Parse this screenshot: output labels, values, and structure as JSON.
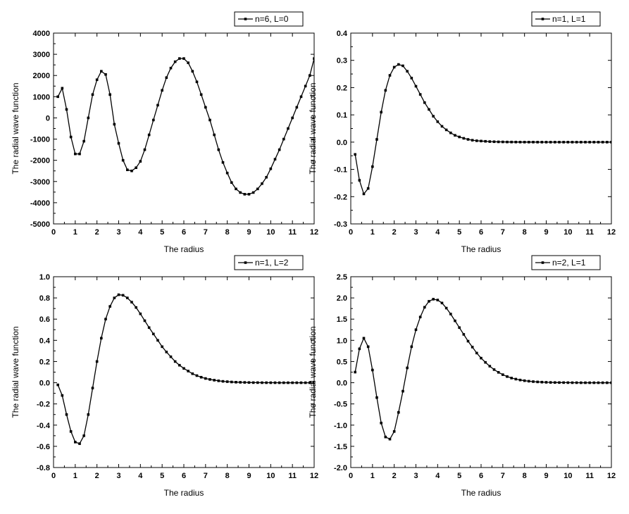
{
  "chart_data": [
    {
      "type": "line",
      "xlabel": "The radius",
      "ylabel": "The radial wave function",
      "xlim": [
        0,
        12
      ],
      "ylim": [
        -5000,
        4000
      ],
      "x_ticks": [
        0,
        1,
        2,
        3,
        4,
        5,
        6,
        7,
        8,
        9,
        10,
        11,
        12
      ],
      "y_ticks": [
        -5000,
        -4000,
        -3000,
        -2000,
        -1000,
        0,
        1000,
        2000,
        3000,
        4000
      ],
      "y_tick_labels": [
        "-5000",
        "-4000",
        "-3000",
        "-2000",
        "-1000",
        "0",
        "1000",
        "2000",
        "3000",
        "4000"
      ],
      "legend_position": "top-right",
      "series": [
        {
          "name": "n=6, L=0",
          "x": [
            0.2,
            0.4,
            0.6,
            0.8,
            1.0,
            1.2,
            1.4,
            1.6,
            1.8,
            2.0,
            2.2,
            2.4,
            2.6,
            2.8,
            3.0,
            3.2,
            3.4,
            3.6,
            3.8,
            4.0,
            4.2,
            4.4,
            4.6,
            4.8,
            5.0,
            5.2,
            5.4,
            5.6,
            5.8,
            6.0,
            6.2,
            6.4,
            6.6,
            6.8,
            7.0,
            7.2,
            7.4,
            7.6,
            7.8,
            8.0,
            8.2,
            8.4,
            8.6,
            8.8,
            9.0,
            9.2,
            9.4,
            9.6,
            9.8,
            10.0,
            10.2,
            10.4,
            10.6,
            10.8,
            11.0,
            11.2,
            11.4,
            11.6,
            11.8,
            12.0
          ],
          "y": [
            1000,
            1400,
            400,
            -900,
            -1700,
            -1700,
            -1100,
            0,
            1100,
            1800,
            2200,
            2050,
            1100,
            -300,
            -1200,
            -2000,
            -2450,
            -2500,
            -2350,
            -2050,
            -1500,
            -800,
            -100,
            600,
            1300,
            1900,
            2350,
            2650,
            2800,
            2800,
            2600,
            2200,
            1700,
            1100,
            500,
            -100,
            -800,
            -1500,
            -2100,
            -2600,
            -3050,
            -3350,
            -3520,
            -3600,
            -3600,
            -3520,
            -3350,
            -3100,
            -2800,
            -2400,
            -1950,
            -1500,
            -1000,
            -500,
            0,
            500,
            1000,
            1500,
            2000,
            2800
          ]
        }
      ]
    },
    {
      "type": "line",
      "xlabel": "The radius",
      "ylabel": "The radial wave function",
      "xlim": [
        0,
        12
      ],
      "ylim": [
        -0.3,
        0.4
      ],
      "x_ticks": [
        0,
        1,
        2,
        3,
        4,
        5,
        6,
        7,
        8,
        9,
        10,
        11,
        12
      ],
      "y_ticks": [
        -0.3,
        -0.2,
        -0.1,
        0.0,
        0.1,
        0.2,
        0.3,
        0.4
      ],
      "y_tick_labels": [
        "-0.3",
        "-0.2",
        "-0.1",
        "0.0",
        "0.1",
        "0.2",
        "0.3",
        "0.4"
      ],
      "legend_position": "top-right",
      "series": [
        {
          "name": "n=1, L=1",
          "x": [
            0.2,
            0.4,
            0.6,
            0.8,
            1.0,
            1.2,
            1.4,
            1.6,
            1.8,
            2.0,
            2.2,
            2.4,
            2.6,
            2.8,
            3.0,
            3.2,
            3.4,
            3.6,
            3.8,
            4.0,
            4.2,
            4.4,
            4.6,
            4.8,
            5.0,
            5.2,
            5.4,
            5.6,
            5.8,
            6.0,
            6.2,
            6.4,
            6.6,
            6.8,
            7.0,
            7.2,
            7.4,
            7.6,
            7.8,
            8.0,
            8.2,
            8.4,
            8.6,
            8.8,
            9.0,
            9.2,
            9.4,
            9.6,
            9.8,
            10.0,
            10.2,
            10.4,
            10.6,
            10.8,
            11.0,
            11.2,
            11.4,
            11.6,
            11.8,
            12.0
          ],
          "y": [
            -0.045,
            -0.14,
            -0.19,
            -0.17,
            -0.09,
            0.01,
            0.11,
            0.19,
            0.245,
            0.275,
            0.285,
            0.28,
            0.26,
            0.235,
            0.205,
            0.175,
            0.145,
            0.12,
            0.095,
            0.075,
            0.058,
            0.045,
            0.034,
            0.025,
            0.019,
            0.014,
            0.01,
            0.007,
            0.005,
            0.004,
            0.003,
            0.002,
            0.0015,
            0.001,
            0.0008,
            0.0005,
            0.0004,
            0.0003,
            0.0002,
            0.0001,
            0.0001,
            0.0001,
            0.0,
            0.0,
            0.0,
            0.0,
            0.0,
            0.0,
            0.0,
            0.0,
            0.0,
            0.0,
            0.0,
            0.0,
            0.0,
            0.0,
            0.0,
            0.0,
            0.0,
            0.0
          ]
        }
      ]
    },
    {
      "type": "line",
      "xlabel": "The radius",
      "ylabel": "The radial wave function",
      "xlim": [
        0,
        12
      ],
      "ylim": [
        -0.8,
        1.0
      ],
      "x_ticks": [
        0,
        1,
        2,
        3,
        4,
        5,
        6,
        7,
        8,
        9,
        10,
        11,
        12
      ],
      "y_ticks": [
        -0.8,
        -0.6,
        -0.4,
        -0.2,
        0.0,
        0.2,
        0.4,
        0.6,
        0.8,
        1.0
      ],
      "y_tick_labels": [
        "-0.8",
        "-0.6",
        "-0.4",
        "-0.2",
        "0.0",
        "0.2",
        "0.4",
        "0.6",
        "0.8",
        "1.0"
      ],
      "legend_position": "top-right",
      "series": [
        {
          "name": "n=1, L=2",
          "x": [
            0.2,
            0.4,
            0.6,
            0.8,
            1.0,
            1.2,
            1.4,
            1.6,
            1.8,
            2.0,
            2.2,
            2.4,
            2.6,
            2.8,
            3.0,
            3.2,
            3.4,
            3.6,
            3.8,
            4.0,
            4.2,
            4.4,
            4.6,
            4.8,
            5.0,
            5.2,
            5.4,
            5.6,
            5.8,
            6.0,
            6.2,
            6.4,
            6.6,
            6.8,
            7.0,
            7.2,
            7.4,
            7.6,
            7.8,
            8.0,
            8.2,
            8.4,
            8.6,
            8.8,
            9.0,
            9.2,
            9.4,
            9.6,
            9.8,
            10.0,
            10.2,
            10.4,
            10.6,
            10.8,
            11.0,
            11.2,
            11.4,
            11.6,
            11.8,
            12.0
          ],
          "y": [
            -0.02,
            -0.12,
            -0.3,
            -0.46,
            -0.56,
            -0.575,
            -0.5,
            -0.3,
            -0.05,
            0.2,
            0.42,
            0.6,
            0.72,
            0.8,
            0.83,
            0.825,
            0.8,
            0.76,
            0.71,
            0.65,
            0.585,
            0.52,
            0.46,
            0.4,
            0.34,
            0.29,
            0.245,
            0.2,
            0.165,
            0.135,
            0.11,
            0.085,
            0.067,
            0.052,
            0.04,
            0.031,
            0.024,
            0.018,
            0.013,
            0.01,
            0.007,
            0.005,
            0.004,
            0.003,
            0.002,
            0.001,
            0.001,
            0.0005,
            0.0003,
            0.0002,
            0.0001,
            0.0,
            0.0,
            0.0,
            0.0,
            0.0,
            0.0,
            0.0,
            0.0,
            0.0
          ]
        }
      ]
    },
    {
      "type": "line",
      "xlabel": "The radius",
      "ylabel": "The radial wave function",
      "xlim": [
        0,
        12
      ],
      "ylim": [
        -2.0,
        2.5
      ],
      "x_ticks": [
        0,
        1,
        2,
        3,
        4,
        5,
        6,
        7,
        8,
        9,
        10,
        11,
        12
      ],
      "y_ticks": [
        -2.0,
        -1.5,
        -1.0,
        -0.5,
        0.0,
        0.5,
        1.0,
        1.5,
        2.0,
        2.5
      ],
      "y_tick_labels": [
        "-2.0",
        "-1.5",
        "-1.0",
        "-0.5",
        "0.0",
        "0.5",
        "1.0",
        "1.5",
        "2.0",
        "2.5"
      ],
      "legend_position": "top-right",
      "series": [
        {
          "name": "n=2, L=1",
          "x": [
            0.2,
            0.4,
            0.6,
            0.8,
            1.0,
            1.2,
            1.4,
            1.6,
            1.8,
            2.0,
            2.2,
            2.4,
            2.6,
            2.8,
            3.0,
            3.2,
            3.4,
            3.6,
            3.8,
            4.0,
            4.2,
            4.4,
            4.6,
            4.8,
            5.0,
            5.2,
            5.4,
            5.6,
            5.8,
            6.0,
            6.2,
            6.4,
            6.6,
            6.8,
            7.0,
            7.2,
            7.4,
            7.6,
            7.8,
            8.0,
            8.2,
            8.4,
            8.6,
            8.8,
            9.0,
            9.2,
            9.4,
            9.6,
            9.8,
            10.0,
            10.2,
            10.4,
            10.6,
            10.8,
            11.0,
            11.2,
            11.4,
            11.6,
            11.8,
            12.0
          ],
          "y": [
            0.25,
            0.8,
            1.05,
            0.85,
            0.3,
            -0.35,
            -0.95,
            -1.28,
            -1.33,
            -1.15,
            -0.7,
            -0.2,
            0.35,
            0.85,
            1.25,
            1.55,
            1.78,
            1.92,
            1.97,
            1.95,
            1.88,
            1.76,
            1.62,
            1.46,
            1.3,
            1.14,
            0.98,
            0.84,
            0.7,
            0.58,
            0.48,
            0.39,
            0.31,
            0.245,
            0.19,
            0.145,
            0.11,
            0.085,
            0.064,
            0.048,
            0.036,
            0.026,
            0.019,
            0.014,
            0.01,
            0.007,
            0.005,
            0.004,
            0.003,
            0.002,
            0.001,
            0.001,
            0.0,
            0.0,
            0.0,
            0.0,
            0.0,
            0.0,
            0.0,
            0.0
          ]
        }
      ]
    }
  ]
}
